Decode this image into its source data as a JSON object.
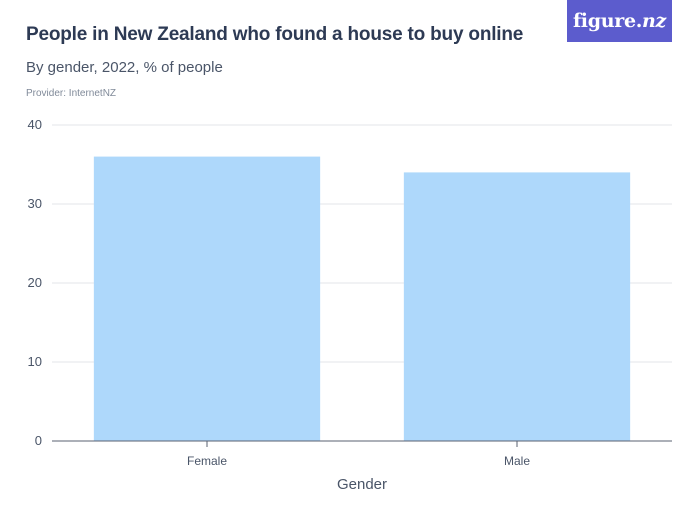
{
  "header": {
    "title": "People in New Zealand who found a house to buy online",
    "subtitle": "By gender, 2022, % of people",
    "provider": "Provider: InternetNZ",
    "logo_text": "figure.",
    "logo_suffix": "nz"
  },
  "colors": {
    "bar": "#aed8fb",
    "grid": "#e3e6ea",
    "axis": "#5a6170",
    "logo_bg": "#5c5ccd"
  },
  "chart_data": {
    "type": "bar",
    "title": "People in New Zealand who found a house to buy online",
    "subtitle": "By gender, 2022, % of people",
    "categories": [
      "Female",
      "Male"
    ],
    "values": [
      36,
      34
    ],
    "xlabel": "Gender",
    "ylabel": "",
    "ylim": [
      0,
      40
    ],
    "yticks": [
      0,
      10,
      20,
      30,
      40
    ],
    "grid": true,
    "legend": "none"
  }
}
